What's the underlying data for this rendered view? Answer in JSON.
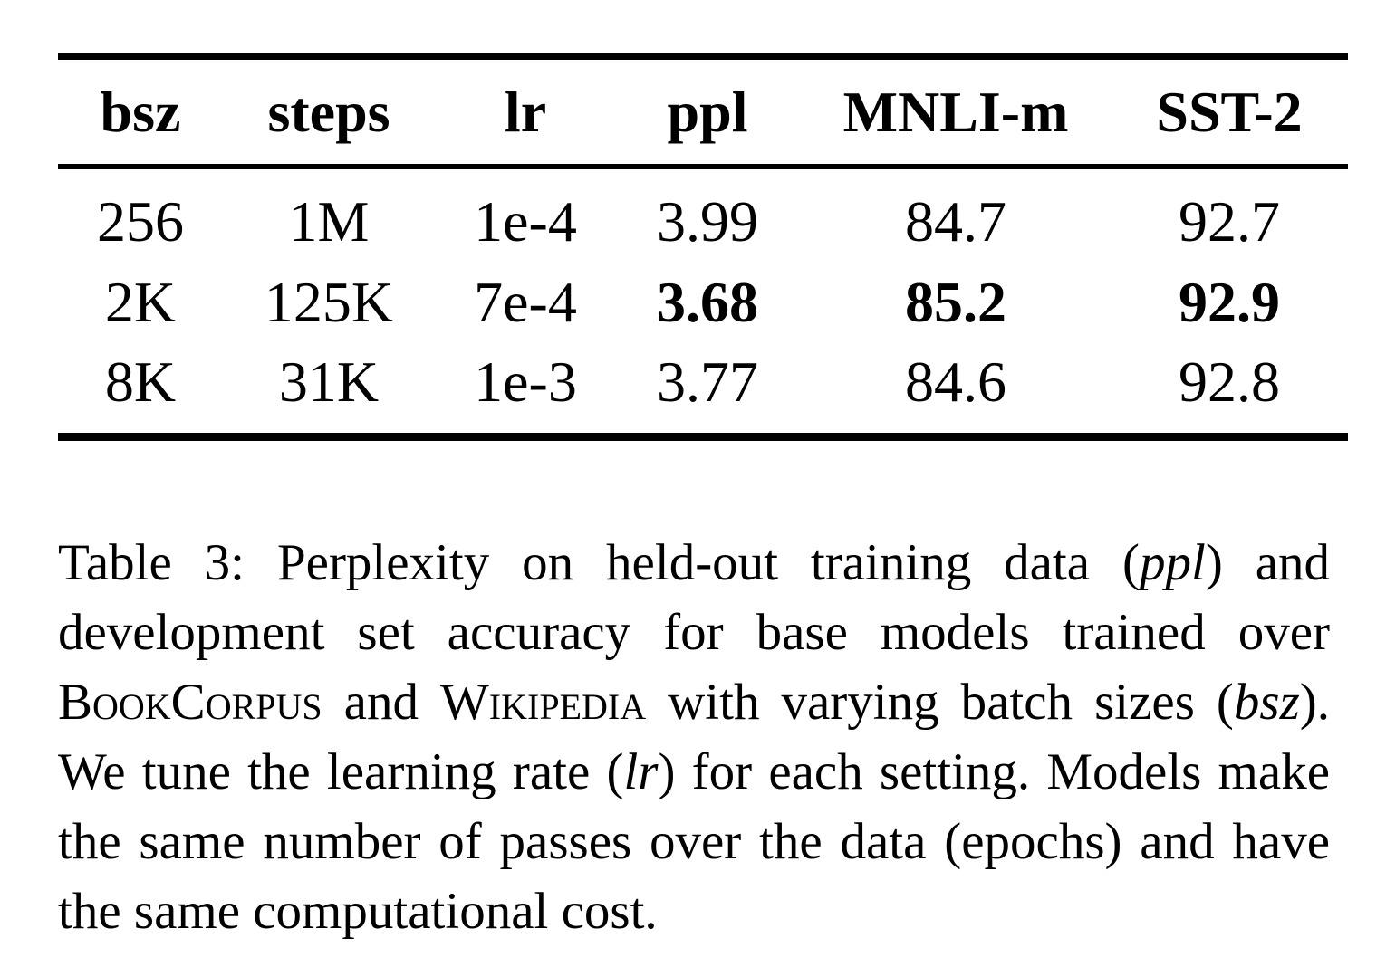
{
  "table": {
    "headers": [
      "bsz",
      "steps",
      "lr",
      "ppl",
      "MNLI-m",
      "SST-2"
    ],
    "rows": [
      [
        "256",
        "1M",
        "1e-4",
        "3.99",
        "84.7",
        "92.7"
      ],
      [
        "2K",
        "125K",
        "7e-4",
        "3.68",
        "85.2",
        "92.9"
      ],
      [
        "8K",
        "31K",
        "1e-3",
        "3.77",
        "84.6",
        "92.8"
      ]
    ],
    "bold_cells": [
      [
        1,
        3
      ],
      [
        1,
        4
      ],
      [
        1,
        5
      ]
    ]
  },
  "caption": {
    "t1": "Table 3: Perplexity on held-out training data (",
    "t2": "ppl",
    "t3": ") and development set accuracy for base models trained over ",
    "t4": "BookCorpus",
    "t5": " and ",
    "t6": "Wikipedia",
    "t7": " with varying batch sizes (",
    "t8": "bsz",
    "t9": "). We tune the learning rate (",
    "t10": "lr",
    "t11": ") for each set­ting. Models make the same number of passes over the data (epochs) and have the same computational cost."
  }
}
